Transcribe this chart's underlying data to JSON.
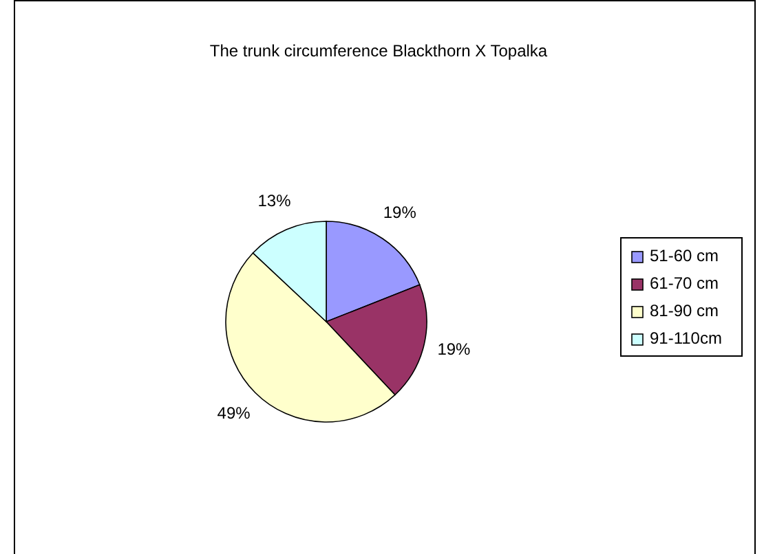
{
  "chart_data": {
    "type": "pie",
    "title": "The trunk circumference Blackthorn X Topalka",
    "categories": [
      "51-60 cm",
      "61-70 cm",
      "81-90 cm",
      "91-110cm"
    ],
    "values": [
      19,
      19,
      49,
      13
    ],
    "colors": [
      "#9999ff",
      "#993366",
      "#ffffcc",
      "#ccffff"
    ],
    "value_labels": [
      "19%",
      "19%",
      "49%",
      "13%"
    ],
    "legend": "right"
  }
}
